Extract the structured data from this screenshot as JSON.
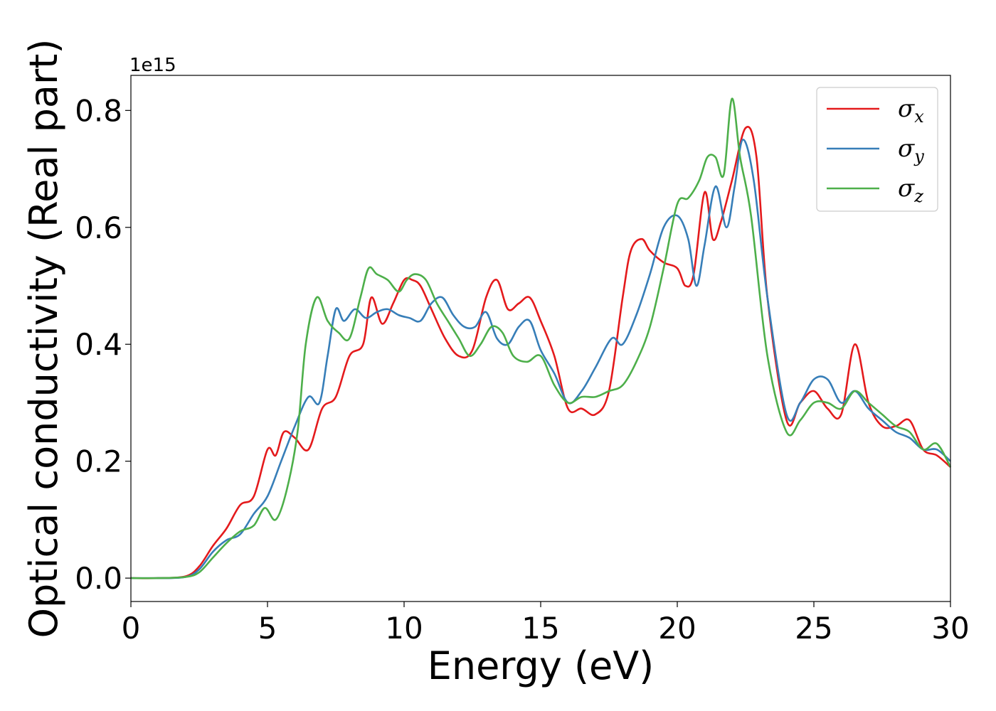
{
  "chart_data": {
    "type": "line",
    "xlabel": "Energy (eV)",
    "ylabel": "Optical conductivity (Real part)",
    "y_offset_label": "1e15",
    "xlim": [
      0,
      30
    ],
    "ylim": [
      -0.04,
      0.86
    ],
    "x_ticks": [
      0,
      5,
      10,
      15,
      20,
      25,
      30
    ],
    "y_ticks": [
      0.0,
      0.2,
      0.4,
      0.6,
      0.8
    ],
    "x_tick_labels": [
      "0",
      "5",
      "10",
      "15",
      "20",
      "25",
      "30"
    ],
    "y_tick_labels": [
      "0.0",
      "0.2",
      "0.4",
      "0.6",
      "0.8"
    ],
    "grid": false,
    "legend_position": "top-right",
    "series": [
      {
        "name": "σx",
        "legend_symbol": "σ",
        "legend_sub": "x",
        "color": "#e41a1c",
        "x": [
          0,
          1,
          2,
          2.5,
          3,
          3.5,
          4,
          4.5,
          5,
          5.3,
          5.6,
          6,
          6.5,
          7,
          7.5,
          8,
          8.5,
          8.8,
          9.2,
          9.6,
          10,
          10.3,
          10.6,
          11,
          11.5,
          12,
          12.5,
          13,
          13.4,
          13.8,
          14.2,
          14.6,
          15,
          15.5,
          16,
          16.5,
          17,
          17.5,
          18,
          18.3,
          18.7,
          19,
          19.5,
          20,
          20.3,
          20.6,
          21,
          21.3,
          21.6,
          22,
          22.5,
          22.9,
          23.3,
          24,
          24.5,
          25,
          25.5,
          26,
          26.5,
          27,
          27.5,
          28,
          28.5,
          29,
          29.5,
          30
        ],
        "y": [
          0,
          0,
          0.003,
          0.02,
          0.055,
          0.085,
          0.125,
          0.14,
          0.22,
          0.21,
          0.25,
          0.24,
          0.22,
          0.29,
          0.31,
          0.38,
          0.4,
          0.48,
          0.435,
          0.47,
          0.51,
          0.51,
          0.5,
          0.46,
          0.41,
          0.38,
          0.39,
          0.48,
          0.51,
          0.46,
          0.47,
          0.48,
          0.44,
          0.38,
          0.29,
          0.29,
          0.28,
          0.32,
          0.48,
          0.56,
          0.58,
          0.56,
          0.54,
          0.53,
          0.5,
          0.52,
          0.66,
          0.58,
          0.61,
          0.68,
          0.77,
          0.72,
          0.48,
          0.27,
          0.3,
          0.32,
          0.29,
          0.28,
          0.4,
          0.3,
          0.26,
          0.26,
          0.27,
          0.22,
          0.21,
          0.19
        ]
      },
      {
        "name": "σy",
        "legend_symbol": "σ",
        "legend_sub": "y",
        "color": "#377eb8",
        "x": [
          0,
          1,
          2,
          2.5,
          3,
          3.5,
          4,
          4.5,
          5,
          5.5,
          6,
          6.5,
          6.9,
          7.2,
          7.5,
          7.8,
          8.2,
          8.6,
          9,
          9.4,
          9.8,
          10.2,
          10.6,
          11,
          11.4,
          11.8,
          12.2,
          12.6,
          13,
          13.4,
          13.8,
          14.2,
          14.6,
          15,
          15.5,
          16,
          16.5,
          17,
          17.6,
          18,
          18.5,
          19,
          19.5,
          20,
          20.4,
          20.7,
          21,
          21.4,
          21.8,
          22.1,
          22.4,
          22.8,
          23.3,
          24,
          24.5,
          25,
          25.5,
          26,
          26.5,
          27,
          27.5,
          28,
          28.5,
          29,
          29.5,
          30
        ],
        "y": [
          0,
          0,
          0.002,
          0.015,
          0.045,
          0.065,
          0.075,
          0.11,
          0.14,
          0.2,
          0.26,
          0.31,
          0.3,
          0.38,
          0.46,
          0.44,
          0.46,
          0.445,
          0.455,
          0.46,
          0.45,
          0.445,
          0.44,
          0.47,
          0.48,
          0.45,
          0.43,
          0.43,
          0.455,
          0.41,
          0.4,
          0.43,
          0.44,
          0.39,
          0.35,
          0.3,
          0.32,
          0.36,
          0.41,
          0.4,
          0.45,
          0.52,
          0.6,
          0.62,
          0.58,
          0.5,
          0.57,
          0.67,
          0.6,
          0.67,
          0.75,
          0.68,
          0.48,
          0.28,
          0.3,
          0.34,
          0.34,
          0.3,
          0.32,
          0.29,
          0.27,
          0.25,
          0.24,
          0.22,
          0.22,
          0.2
        ]
      },
      {
        "name": "σz",
        "legend_symbol": "σ",
        "legend_sub": "z",
        "color": "#4daf4a",
        "x": [
          0,
          1,
          2,
          2.5,
          3,
          3.5,
          4,
          4.5,
          4.9,
          5.3,
          5.7,
          6.1,
          6.4,
          6.8,
          7.2,
          7.6,
          8,
          8.4,
          8.7,
          9,
          9.4,
          9.8,
          10.1,
          10.4,
          10.8,
          11.2,
          11.6,
          12,
          12.4,
          12.8,
          13.2,
          13.6,
          14,
          14.5,
          15,
          15.5,
          16,
          16.5,
          17,
          17.5,
          18,
          18.5,
          19,
          19.5,
          20,
          20.4,
          20.8,
          21.1,
          21.4,
          21.7,
          22,
          22.3,
          22.7,
          23.3,
          24,
          24.5,
          25,
          25.5,
          26,
          26.5,
          27,
          27.5,
          28,
          28.5,
          29,
          29.5,
          30
        ],
        "y": [
          0,
          0,
          0.002,
          0.01,
          0.035,
          0.06,
          0.08,
          0.09,
          0.12,
          0.1,
          0.15,
          0.25,
          0.4,
          0.48,
          0.44,
          0.42,
          0.41,
          0.48,
          0.53,
          0.52,
          0.51,
          0.49,
          0.51,
          0.52,
          0.51,
          0.47,
          0.44,
          0.41,
          0.38,
          0.4,
          0.43,
          0.42,
          0.38,
          0.37,
          0.38,
          0.33,
          0.3,
          0.31,
          0.31,
          0.32,
          0.33,
          0.37,
          0.43,
          0.53,
          0.64,
          0.65,
          0.68,
          0.72,
          0.72,
          0.69,
          0.82,
          0.72,
          0.62,
          0.38,
          0.25,
          0.27,
          0.3,
          0.3,
          0.29,
          0.32,
          0.3,
          0.28,
          0.26,
          0.25,
          0.22,
          0.23,
          0.19
        ]
      }
    ]
  }
}
